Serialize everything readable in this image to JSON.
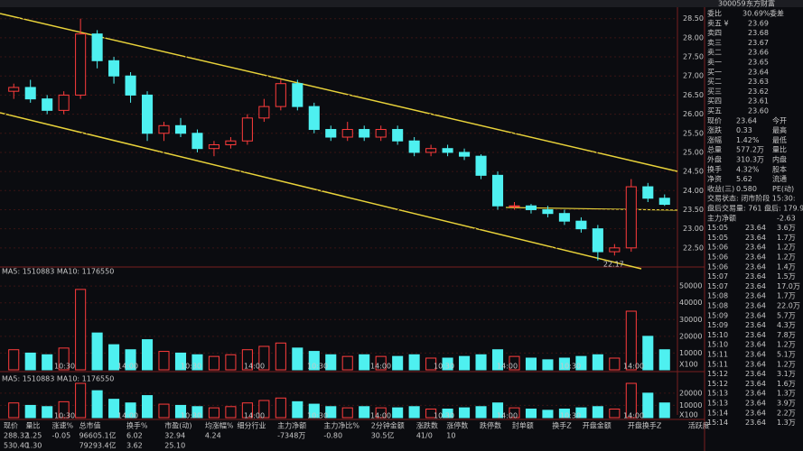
{
  "chart_data": {
    "type": "candlestick",
    "stock_code": "300059",
    "stock_name": "东方财富",
    "ylim": [
      22.0,
      28.8
    ],
    "yticks": [
      {
        "value": 28.5,
        "label": "28.50"
      },
      {
        "value": 28,
        "label": "28.00"
      },
      {
        "value": 27.5,
        "label": "27.50"
      },
      {
        "value": 27,
        "label": "27.00"
      },
      {
        "value": 26.5,
        "label": "26.50"
      },
      {
        "value": 26,
        "label": "26.00"
      },
      {
        "value": 25.5,
        "label": "25.50"
      },
      {
        "value": 25,
        "label": "25.00"
      },
      {
        "value": 24.5,
        "label": "24.50"
      },
      {
        "value": 24,
        "label": "24.00"
      },
      {
        "value": 23.5,
        "label": "23.50"
      },
      {
        "value": 23,
        "label": "23.00"
      },
      {
        "value": 22.5,
        "label": "22.50"
      }
    ],
    "candles": [
      [
        26.6,
        26.8,
        26.4,
        26.7
      ],
      [
        26.7,
        26.9,
        26.3,
        26.4
      ],
      [
        26.4,
        26.5,
        26.0,
        26.1
      ],
      [
        26.1,
        26.6,
        26.0,
        26.5
      ],
      [
        26.5,
        28.5,
        26.4,
        28.1
      ],
      [
        28.1,
        28.2,
        27.2,
        27.4
      ],
      [
        27.4,
        27.5,
        26.8,
        27.0
      ],
      [
        27.0,
        27.1,
        26.3,
        26.5
      ],
      [
        26.5,
        26.6,
        25.3,
        25.5
      ],
      [
        25.5,
        25.8,
        25.3,
        25.7
      ],
      [
        25.7,
        25.9,
        25.4,
        25.5
      ],
      [
        25.5,
        25.6,
        25.0,
        25.1
      ],
      [
        25.1,
        25.3,
        24.9,
        25.2
      ],
      [
        25.2,
        25.4,
        25.1,
        25.3
      ],
      [
        25.3,
        26.0,
        25.2,
        25.9
      ],
      [
        25.9,
        26.4,
        25.8,
        26.2
      ],
      [
        26.2,
        26.9,
        26.1,
        26.8
      ],
      [
        26.8,
        26.9,
        26.1,
        26.2
      ],
      [
        26.2,
        26.3,
        25.5,
        25.6
      ],
      [
        25.6,
        25.7,
        25.3,
        25.4
      ],
      [
        25.4,
        25.8,
        25.3,
        25.6
      ],
      [
        25.6,
        25.7,
        25.3,
        25.4
      ],
      [
        25.4,
        25.7,
        25.3,
        25.6
      ],
      [
        25.6,
        25.7,
        25.2,
        25.3
      ],
      [
        25.3,
        25.4,
        24.9,
        25.0
      ],
      [
        25.0,
        25.2,
        24.9,
        25.1
      ],
      [
        25.1,
        25.2,
        24.9,
        25.0
      ],
      [
        25.0,
        25.1,
        24.8,
        24.9
      ],
      [
        24.9,
        24.95,
        24.3,
        24.4
      ],
      [
        24.4,
        24.5,
        23.5,
        23.6
      ],
      [
        23.6,
        23.7,
        23.5,
        23.6
      ],
      [
        23.6,
        23.65,
        23.4,
        23.5
      ],
      [
        23.5,
        23.6,
        23.3,
        23.4
      ],
      [
        23.4,
        23.5,
        23.1,
        23.2
      ],
      [
        23.2,
        23.3,
        22.9,
        23.0
      ],
      [
        23.0,
        23.1,
        22.17,
        22.4
      ],
      [
        22.4,
        22.6,
        22.3,
        22.5
      ],
      [
        22.5,
        24.3,
        22.4,
        24.1
      ],
      [
        24.1,
        24.2,
        23.7,
        23.8
      ],
      [
        23.8,
        23.9,
        23.6,
        23.64
      ]
    ],
    "low_annotation": 22.17,
    "ma_label": "MA5: 1510883  MA10: 1176550",
    "volume_ylim": [
      0,
      56000
    ],
    "volumes": [
      12000,
      10000,
      9000,
      13000,
      48000,
      22000,
      15000,
      12000,
      18000,
      11000,
      10000,
      9000,
      8000,
      9000,
      12000,
      14000,
      16000,
      13000,
      11000,
      9000,
      8000,
      9000,
      8000,
      8000,
      9000,
      7000,
      7000,
      8000,
      9000,
      12000,
      8000,
      7000,
      6000,
      7000,
      8000,
      9000,
      7000,
      35000,
      20000,
      12000
    ],
    "volume_yticks": [
      10000,
      20000,
      30000,
      40000,
      50000
    ],
    "volume2_ylim": [
      0,
      28000
    ],
    "volume2_yticks": [
      10000,
      20000
    ],
    "volume_unit": "X100",
    "time_labels": [
      "10:30",
      "14:00",
      "10:30",
      "14:00",
      "10:30",
      "14:00",
      "10:30",
      "14:00",
      "10:30",
      "14:00"
    ]
  },
  "order_book": {
    "ratio": [
      "委比",
      "30.69%",
      "委差"
    ],
    "asks": [
      [
        "卖五 ¥",
        "23.69"
      ],
      [
        "卖四",
        "23.68"
      ],
      [
        "卖三",
        "23.67"
      ],
      [
        "卖二",
        "23.66"
      ],
      [
        "卖一",
        "23.65"
      ]
    ],
    "bids": [
      [
        "买一",
        "23.64"
      ],
      [
        "买二",
        "23.63"
      ],
      [
        "买三",
        "23.62"
      ],
      [
        "买四",
        "23.61"
      ],
      [
        "买五",
        "23.60"
      ]
    ],
    "stats": [
      [
        "现价",
        "23.64",
        "今开"
      ],
      [
        "涨跌",
        "0.33",
        "最高"
      ],
      [
        "涨幅",
        "1.42%",
        "最低"
      ],
      [
        "总量",
        "577.2万",
        "量比"
      ],
      [
        "外盘",
        "310.3万",
        "内盘"
      ],
      [
        "换手",
        "4.32%",
        "股本"
      ],
      [
        "净资",
        "5.62",
        "流通"
      ],
      [
        "收益(三)",
        "0.580",
        "PE(动)"
      ]
    ],
    "status": "交易状态: 闭市阶段 15:30:",
    "after_hours": "盘后交易量: 761  盘后: 179.9",
    "main_net": [
      "主力净额",
      "-2.63"
    ]
  },
  "trades": [
    [
      "15:05",
      "23.64",
      "3.6万"
    ],
    [
      "15:05",
      "23.64",
      "1.7万"
    ],
    [
      "15:06",
      "23.64",
      "1.2万"
    ],
    [
      "15:06",
      "23.64",
      "1.2万"
    ],
    [
      "15:06",
      "23.64",
      "1.4万"
    ],
    [
      "15:07",
      "23.64",
      "1.5万"
    ],
    [
      "15:07",
      "23.64",
      "17.0万"
    ],
    [
      "15:08",
      "23.64",
      "1.7万"
    ],
    [
      "15:08",
      "23.64",
      "22.0万"
    ],
    [
      "15:09",
      "23.64",
      "5.7万"
    ],
    [
      "15:09",
      "23.64",
      "4.3万"
    ],
    [
      "15:10",
      "23.64",
      "7.8万"
    ],
    [
      "15:10",
      "23.64",
      "1.2万"
    ],
    [
      "15:11",
      "23.64",
      "5.1万"
    ],
    [
      "15:11",
      "23.64",
      "1.2万"
    ],
    [
      "15:12",
      "23.64",
      "3.1万"
    ],
    [
      "15:12",
      "23.64",
      "1.6万"
    ],
    [
      "15:13",
      "23.64",
      "1.3万"
    ],
    [
      "15:13",
      "23.64",
      "3.9万"
    ],
    [
      "15:14",
      "23.64",
      "2.2万"
    ],
    [
      "15:14",
      "23.64",
      "1.3万"
    ]
  ],
  "table": {
    "headers": [
      "现价",
      "量比",
      "涨速%",
      "总市值",
      "换手%",
      "市盈(动)",
      "均涨幅%",
      "细分行业",
      "主力净额",
      "主力净比%",
      "2分钟金额",
      "涨跌数",
      "涨停数",
      "跌停数",
      "封单额",
      "换手Z",
      "开盘金额",
      "开盘换手Z",
      "活跃度"
    ],
    "rows": [
      [
        "288.32",
        "1.25",
        "-0.05",
        "96605.1亿",
        "6.02",
        "32.94",
        "4.24",
        "",
        "-7348万",
        "-0.80",
        "30.5亿",
        "41/0",
        "10",
        "",
        "",
        "",
        "",
        "",
        ""
      ],
      [
        "530.40",
        "1.30",
        "",
        "79293.4亿",
        "3.62",
        "25.10",
        "",
        "",
        "",
        "",
        "",
        "",
        "",
        "",
        "",
        "",
        "",
        "",
        ""
      ]
    ]
  }
}
